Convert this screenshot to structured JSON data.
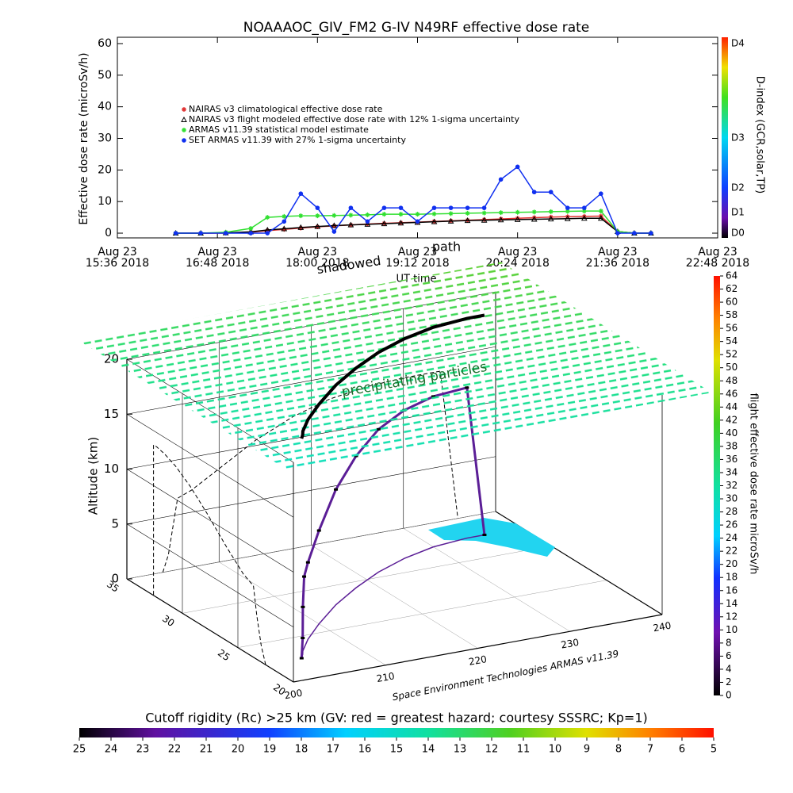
{
  "chart_data": [
    {
      "type": "line",
      "title": "NOAAAOC_GIV_FM2 G-IV   N49RF  effective dose rate",
      "y_label": "Effective dose rate (microSv/h)",
      "x_label": "UT time",
      "annotations": [
        "path",
        "shadowed"
      ],
      "xlim": [
        "2018-08-23T15:36",
        "2018-08-23T22:48"
      ],
      "xticks": [
        {
          "value": "2018-08-23T15:36",
          "label": [
            "Aug 23",
            "15:36 2018"
          ]
        },
        {
          "value": "2018-08-23T16:48",
          "label": [
            "Aug 23",
            "16:48 2018"
          ]
        },
        {
          "value": "2018-08-23T18:00",
          "label": [
            "Aug 23",
            "18:00 2018"
          ]
        },
        {
          "value": "2018-08-23T19:12",
          "label": [
            "Aug 23",
            "19:12 2018"
          ]
        },
        {
          "value": "2018-08-23T20:24",
          "label": [
            "Aug 23",
            "20:24 2018"
          ]
        },
        {
          "value": "2018-08-23T21:36",
          "label": [
            "Aug 23",
            "21:36 2018"
          ]
        },
        {
          "value": "2018-08-23T22:48",
          "label": [
            "Aug 23",
            "22:48 2018"
          ]
        }
      ],
      "ylim": [
        -1.5,
        62
      ],
      "yticks": [
        0,
        10,
        20,
        30,
        40,
        50,
        60
      ],
      "x": [
        "2018-08-23T16:18",
        "2018-08-23T16:36",
        "2018-08-23T16:54",
        "2018-08-23T17:12",
        "2018-08-23T17:24",
        "2018-08-23T17:36",
        "2018-08-23T17:48",
        "2018-08-23T18:00",
        "2018-08-23T18:12",
        "2018-08-23T18:24",
        "2018-08-23T18:36",
        "2018-08-23T18:48",
        "2018-08-23T19:00",
        "2018-08-23T19:12",
        "2018-08-23T19:24",
        "2018-08-23T19:36",
        "2018-08-23T19:48",
        "2018-08-23T20:00",
        "2018-08-23T20:12",
        "2018-08-23T20:24",
        "2018-08-23T20:36",
        "2018-08-23T20:48",
        "2018-08-23T21:00",
        "2018-08-23T21:12",
        "2018-08-23T21:24",
        "2018-08-23T21:36",
        "2018-08-23T21:48",
        "2018-08-23T22:00"
      ],
      "series": [
        {
          "name": "NAIRAS v3 climatological effective dose rate",
          "color": "#e03030",
          "marker": "asterisk",
          "values": [
            0,
            0,
            0,
            0.3,
            0.8,
            1.2,
            1.6,
            2,
            2.3,
            2.6,
            2.9,
            3.1,
            3.3,
            3.5,
            3.7,
            3.9,
            4.1,
            4.3,
            4.5,
            4.7,
            4.9,
            5.1,
            5.2,
            5.3,
            5.4,
            0.5,
            0,
            0
          ]
        },
        {
          "name": "NAIRAS v3 flight modeled effective dose rate with 12% 1-sigma uncertainty",
          "color": "#000000",
          "marker": "triangle",
          "values": [
            0,
            0,
            0.1,
            0.4,
            1,
            1.4,
            1.8,
            2.1,
            2.4,
            2.6,
            2.8,
            3,
            3.2,
            3.4,
            3.6,
            3.8,
            4,
            4.1,
            4.2,
            4.3,
            4.4,
            4.5,
            4.6,
            4.7,
            4.7,
            0.5,
            0,
            0
          ]
        },
        {
          "name": "ARMAS v11.39 statistical model estimate",
          "color": "#30e030",
          "marker": "asterisk",
          "values": [
            0,
            0,
            0.3,
            1.5,
            5,
            5.3,
            5.5,
            5.5,
            5.6,
            5.7,
            5.8,
            6,
            6,
            6,
            6.1,
            6.2,
            6.3,
            6.4,
            6.5,
            6.6,
            6.7,
            6.8,
            6.9,
            7,
            7,
            0.5,
            0,
            0
          ]
        },
        {
          "name": "SET ARMAS v11.39 with 27% 1-sigma uncertainty",
          "color": "#1030f0",
          "marker": "circle",
          "values": [
            0,
            0,
            0,
            0,
            0,
            3.7,
            12.5,
            8,
            0.5,
            8,
            3.7,
            8,
            8,
            3.7,
            8,
            8,
            8,
            8,
            17,
            21,
            13,
            13,
            8,
            8,
            12.5,
            0,
            0,
            0
          ]
        }
      ],
      "colorbar": {
        "label": "D-index (GCR,solar,TP)",
        "ticks": [
          "D0",
          "D1",
          "D2",
          "D3",
          "D4"
        ]
      }
    },
    {
      "type": "scatter3d",
      "z_label": "Altitude (km)",
      "annotations": [
        "precipitating particles"
      ],
      "credit": "Space Environment Technologies ARMAS v11.39",
      "xlim": [
        200,
        240
      ],
      "xticks": [
        200,
        210,
        220,
        230,
        240
      ],
      "ylim": [
        20,
        35
      ],
      "yticks": [
        20,
        25,
        30,
        35
      ],
      "zlim": [
        0,
        20
      ],
      "zticks": [
        0,
        5,
        10,
        15,
        20
      ],
      "series": [
        {
          "color": "#5b1e96",
          "x": [
            203.9,
            204.5,
            205,
            205.5,
            207,
            210,
            214,
            218,
            222,
            226,
            230,
            234,
            235.9
          ],
          "y": [
            22.5,
            22.9,
            23.3,
            23.6,
            24.5,
            26,
            27.8,
            29.3,
            30.6,
            31.6,
            32.3,
            32.6,
            32.6
          ],
          "z": [
            0,
            1.5,
            4,
            6.5,
            7,
            8.5,
            10.5,
            12,
            13,
            13.5,
            13.7,
            13.7,
            0
          ]
        }
      ],
      "colorbar": {
        "label": "flight effective dose rate microSv/h",
        "lim": [
          0,
          64
        ],
        "ticks": [
          0,
          2,
          4,
          6,
          8,
          10,
          12,
          14,
          16,
          18,
          20,
          22,
          24,
          26,
          28,
          30,
          32,
          34,
          36,
          38,
          40,
          42,
          44,
          46,
          48,
          50,
          52,
          54,
          56,
          58,
          60,
          62,
          64
        ]
      }
    },
    {
      "type": "colorbar",
      "title": "Cutoff rigidity (Rc) >25 km (GV: red = greatest hazard; courtesy SSSRC; Kp=1)",
      "lim": [
        25,
        5
      ],
      "ticks": [
        25,
        24,
        23,
        22,
        21,
        20,
        19,
        18,
        17,
        16,
        15,
        14,
        13,
        12,
        11,
        10,
        9,
        8,
        7,
        6,
        5
      ]
    }
  ]
}
